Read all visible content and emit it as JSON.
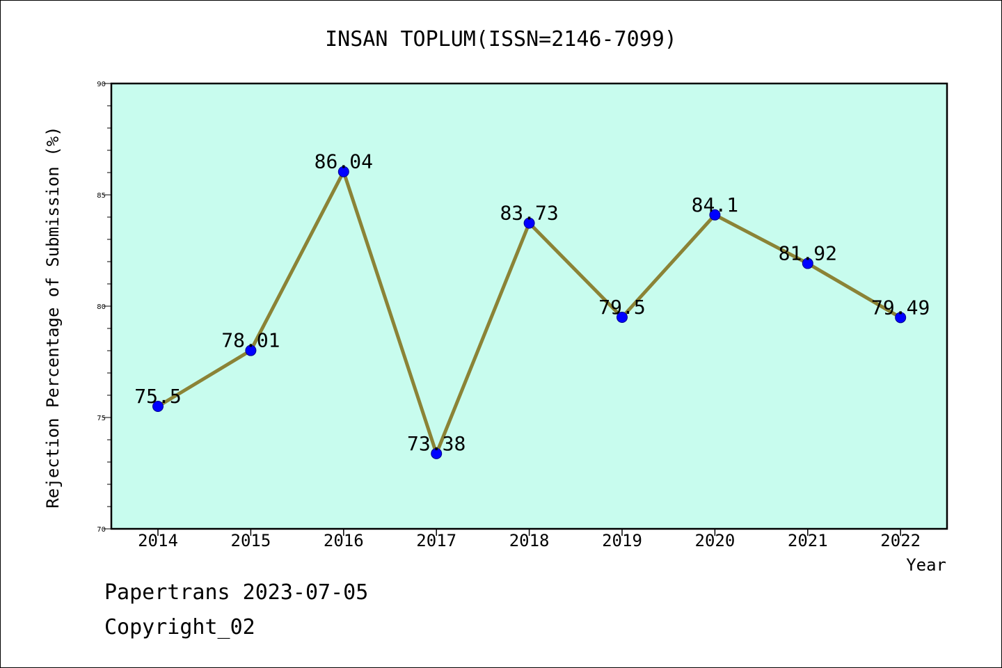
{
  "chart_data": {
    "type": "line",
    "title": "INSAN TOPLUM(ISSN=2146-7099)",
    "xlabel": "Year",
    "ylabel": "Rejection Percentage of Submission (%)",
    "categories": [
      "2014",
      "2015",
      "2016",
      "2017",
      "2018",
      "2019",
      "2020",
      "2021",
      "2022"
    ],
    "values": [
      75.5,
      78.01,
      86.04,
      73.38,
      83.73,
      79.5,
      84.1,
      81.92,
      79.49
    ],
    "data_labels": [
      "75.5",
      "78.01",
      "86.04",
      "73.38",
      "83.73",
      "79.5",
      "84.1",
      "81.92",
      "79.49"
    ],
    "ylim": [
      70,
      90
    ],
    "yticks": [
      70,
      75,
      80,
      85,
      90
    ],
    "grid": false,
    "colors": {
      "plot_background": "#c8fcee",
      "line": "#8b8336",
      "marker": "#0000ff"
    }
  },
  "footer": {
    "line1": "Papertrans 2023-07-05",
    "line2": "Copyright_02"
  }
}
